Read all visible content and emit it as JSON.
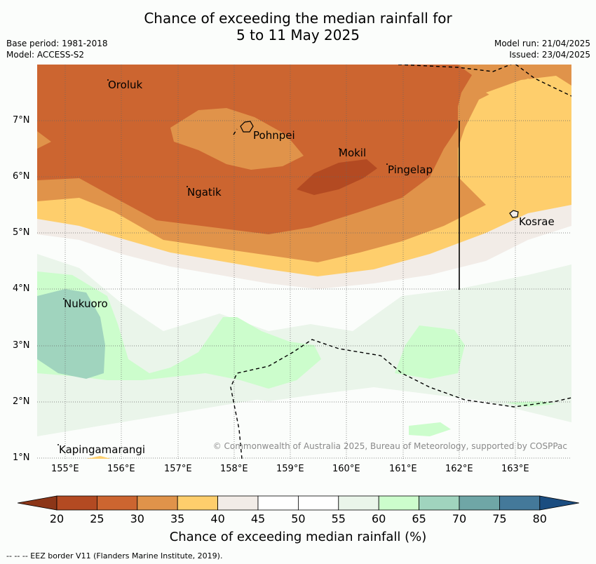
{
  "title_line1": "Chance of exceeding the median rainfall for",
  "title_line2": "5 to 11 May 2025",
  "base_period": "Base period: 1981-2018",
  "model": "Model: ACCESS-S2",
  "model_run": "Model run: 21/04/2025",
  "issued": "Issued: 23/04/2025",
  "map": {
    "places": [
      {
        "name": "Oroluk"
      },
      {
        "name": "Pohnpei"
      },
      {
        "name": "Mokil"
      },
      {
        "name": "Pingelap"
      },
      {
        "name": "Ngatik"
      },
      {
        "name": "Kosrae"
      },
      {
        "name": "Nukuoro"
      },
      {
        "name": "Kapingamarangi"
      }
    ],
    "lat_labels": [
      "7°N",
      "6°N",
      "5°N",
      "4°N",
      "3°N",
      "2°N",
      "1°N"
    ],
    "lon_labels": [
      "155°E",
      "156°E",
      "157°E",
      "158°E",
      "159°E",
      "160°E",
      "161°E",
      "162°E",
      "163°E"
    ],
    "copyright": "© Commonwealth of Australia 2025, Bureau of Meteorology, supported by COSPPac"
  },
  "colorbar": {
    "ticks": [
      "20",
      "25",
      "30",
      "35",
      "40",
      "45",
      "50",
      "55",
      "60",
      "65",
      "70",
      "75",
      "80"
    ],
    "label": "Chance of exceeding median rainfall (%)",
    "colors": [
      "#b34a22",
      "#cc6530",
      "#e0934a",
      "#fece6c",
      "#f2ece7",
      "#ffffff",
      "#ffffff",
      "#eaf5ea",
      "#ccfdcc",
      "#a0d4be",
      "#6fa6a6",
      "#44799a"
    ],
    "under_color": "#8c3618",
    "over_color": "#1b4d80"
  },
  "footer": "--  --  -- EEZ border V11 (Flanders Marine Institute, 2019)."
}
